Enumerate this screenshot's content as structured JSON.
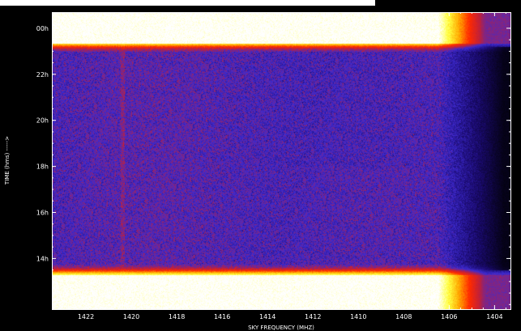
{
  "chart_data": {
    "type": "heatmap",
    "title": "",
    "xlabel": "SKY FREQUENCY (MHZ)",
    "ylabel": "TIME (hms) ----->",
    "x_ticks": [
      {
        "value": 1422,
        "label": "1422"
      },
      {
        "value": 1420,
        "label": "1420"
      },
      {
        "value": 1418,
        "label": "1418"
      },
      {
        "value": 1416,
        "label": "1416"
      },
      {
        "value": 1414,
        "label": "1414"
      },
      {
        "value": 1412,
        "label": "1412"
      },
      {
        "value": 1410,
        "label": "1410"
      },
      {
        "value": 1408,
        "label": "1408"
      },
      {
        "value": 1406,
        "label": "1406"
      },
      {
        "value": 1404,
        "label": "1404"
      }
    ],
    "y_ticks": [
      {
        "value": 0,
        "label": "00h"
      },
      {
        "value": 22,
        "label": "22h"
      },
      {
        "value": 20,
        "label": "20h"
      },
      {
        "value": 18,
        "label": "18h"
      },
      {
        "value": 16,
        "label": "16h"
      },
      {
        "value": 14,
        "label": "14h"
      }
    ],
    "xlim": [
      1423.5,
      1403.3
    ],
    "ylim_hours_elapsed": [
      -0.7,
      12.2
    ],
    "colormap": [
      "#000000",
      "#1a0a6e",
      "#3d2ad0",
      "#c0203a",
      "#ff2a00",
      "#ffa800",
      "#ffff40",
      "#ffffff"
    ],
    "features": {
      "bright_bands": [
        {
          "from": "00h",
          "to": "23h"
        },
        {
          "from": "13h45m",
          "to": "12h"
        }
      ],
      "line_frequency_mhz": 1420.4,
      "roll_off_start_mhz": 1406.5
    }
  }
}
